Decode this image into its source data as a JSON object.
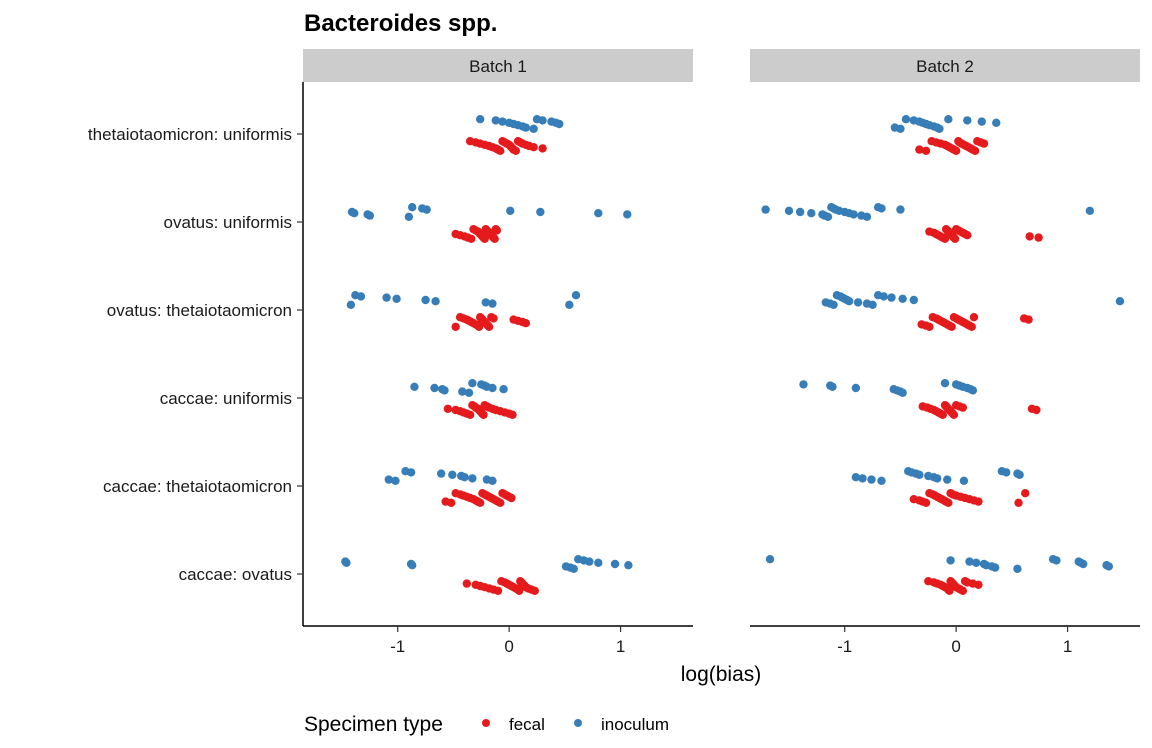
{
  "chart_data": {
    "type": "scatter",
    "title": "Bacteroides spp.",
    "xlabel": "log(bias)",
    "ylabel": "",
    "xlim": [
      -1.85,
      1.65
    ],
    "xticks": [
      "-1",
      "0",
      "1"
    ],
    "xtick_values": [
      -1,
      0,
      1
    ],
    "categories": [
      "thetaiotaomicron: uniformis",
      "ovatus: uniformis",
      "ovatus: thetaiotaomicron",
      "caccae: uniformis",
      "caccae: thetaiotaomicron",
      "caccae: ovatus"
    ],
    "legend": {
      "title": "Specimen type",
      "position": "bottom",
      "entries": [
        {
          "name": "fecal",
          "color": "#e41a1c"
        },
        {
          "name": "inoculum",
          "color": "#377eb8"
        }
      ]
    },
    "facets": [
      {
        "label": "Batch 1",
        "groups": [
          {
            "category": "thetaiotaomicron: uniformis",
            "inoculum": [
              -0.26,
              -0.12,
              -0.06,
              0.0,
              0.04,
              0.08,
              0.12,
              0.15,
              0.22,
              0.25,
              0.3,
              0.38,
              0.42,
              0.45
            ],
            "fecal": [
              -0.35,
              -0.3,
              -0.26,
              -0.22,
              -0.18,
              -0.15,
              -0.12,
              -0.1,
              -0.08,
              -0.06,
              -0.04,
              -0.02,
              0.0,
              0.01,
              0.02,
              0.03,
              0.04,
              0.06,
              0.08,
              0.1,
              0.12,
              0.15,
              0.18,
              0.22,
              0.3
            ]
          },
          {
            "category": "ovatus: uniformis",
            "inoculum": [
              -1.41,
              -1.39,
              -1.27,
              -1.25,
              -0.9,
              -0.87,
              -0.78,
              -0.74,
              0.01,
              0.28,
              0.8,
              1.06
            ],
            "fecal": [
              -0.48,
              -0.44,
              -0.4,
              -0.37,
              -0.34,
              -0.32,
              -0.3,
              -0.28,
              -0.27,
              -0.26,
              -0.25,
              -0.24,
              -0.23,
              -0.22,
              -0.21,
              -0.2,
              -0.19,
              -0.18,
              -0.17,
              -0.16,
              -0.15,
              -0.14,
              -0.13,
              -0.12,
              -0.11
            ]
          },
          {
            "category": "ovatus: thetaiotaomicron",
            "inoculum": [
              -1.42,
              -1.38,
              -1.33,
              -1.1,
              -1.01,
              -0.75,
              -0.66,
              -0.21,
              -0.15,
              0.54,
              0.6
            ],
            "fecal": [
              -0.48,
              -0.44,
              -0.41,
              -0.38,
              -0.36,
              -0.34,
              -0.32,
              -0.3,
              -0.28,
              -0.27,
              -0.26,
              -0.25,
              -0.24,
              -0.23,
              -0.22,
              -0.21,
              -0.2,
              -0.19,
              -0.18,
              -0.16,
              -0.14,
              0.04,
              0.08,
              0.12,
              0.15
            ]
          },
          {
            "category": "caccae: uniformis",
            "inoculum": [
              -0.85,
              -0.67,
              -0.6,
              -0.58,
              -0.42,
              -0.36,
              -0.33,
              -0.25,
              -0.22,
              -0.2,
              -0.15,
              -0.05
            ],
            "fecal": [
              -0.55,
              -0.48,
              -0.44,
              -0.41,
              -0.38,
              -0.35,
              -0.33,
              -0.31,
              -0.3,
              -0.28,
              -0.27,
              -0.26,
              -0.25,
              -0.24,
              -0.23,
              -0.22,
              -0.2,
              -0.18,
              -0.15,
              -0.12,
              -0.08,
              -0.04,
              0.0,
              0.03
            ]
          },
          {
            "category": "caccae: thetaiotaomicron",
            "inoculum": [
              -1.08,
              -1.02,
              -0.93,
              -0.88,
              -0.61,
              -0.51,
              -0.43,
              -0.4,
              -0.33,
              -0.2,
              -0.15
            ],
            "fecal": [
              -0.57,
              -0.52,
              -0.48,
              -0.44,
              -0.41,
              -0.38,
              -0.35,
              -0.32,
              -0.3,
              -0.28,
              -0.26,
              -0.24,
              -0.22,
              -0.2,
              -0.18,
              -0.16,
              -0.14,
              -0.12,
              -0.1,
              -0.08,
              -0.06,
              -0.04,
              -0.02,
              0.0,
              0.02
            ]
          },
          {
            "category": "caccae: ovatus",
            "inoculum": [
              -1.47,
              -1.46,
              -0.88,
              -0.87,
              0.51,
              0.55,
              0.58,
              0.62,
              0.67,
              0.72,
              0.8,
              0.95,
              1.07
            ],
            "fecal": [
              -0.38,
              -0.3,
              -0.26,
              -0.22,
              -0.18,
              -0.14,
              -0.1,
              -0.07,
              -0.04,
              -0.02,
              0.0,
              0.02,
              0.04,
              0.06,
              0.08,
              0.09,
              0.1,
              0.11,
              0.12,
              0.13,
              0.14,
              0.15,
              0.17,
              0.2,
              0.23
            ]
          }
        ]
      },
      {
        "label": "Batch 2",
        "groups": [
          {
            "category": "thetaiotaomicron: uniformis",
            "inoculum": [
              -0.55,
              -0.5,
              -0.45,
              -0.38,
              -0.33,
              -0.3,
              -0.27,
              -0.24,
              -0.2,
              -0.17,
              -0.15,
              -0.07,
              0.1,
              0.23,
              0.36
            ],
            "fecal": [
              -0.33,
              -0.27,
              -0.22,
              -0.18,
              -0.14,
              -0.1,
              -0.08,
              -0.06,
              -0.04,
              -0.02,
              0.0,
              0.02,
              0.03,
              0.05,
              0.07,
              0.09,
              0.11,
              0.13,
              0.15,
              0.17,
              0.19,
              0.22,
              0.25
            ]
          },
          {
            "category": "ovatus: uniformis",
            "inoculum": [
              -1.71,
              -1.5,
              -1.4,
              -1.3,
              -1.2,
              -1.18,
              -1.15,
              -1.12,
              -1.1,
              -1.08,
              -1.05,
              -1.0,
              -0.96,
              -0.92,
              -0.85,
              -0.8,
              -0.7,
              -0.67,
              -0.5,
              1.2
            ],
            "fecal": [
              -0.24,
              -0.2,
              -0.18,
              -0.16,
              -0.14,
              -0.12,
              -0.1,
              -0.09,
              -0.08,
              -0.07,
              -0.06,
              -0.05,
              -0.04,
              -0.03,
              -0.02,
              -0.01,
              0.0,
              0.02,
              0.04,
              0.06,
              0.08,
              0.1,
              0.66,
              0.74
            ]
          },
          {
            "category": "ovatus: thetaiotaomicron",
            "inoculum": [
              -1.17,
              -1.13,
              -1.1,
              -1.07,
              -1.04,
              -1.02,
              -1.0,
              -0.98,
              -0.96,
              -0.88,
              -0.8,
              -0.75,
              -0.7,
              -0.65,
              -0.58,
              -0.48,
              -0.38,
              1.47
            ],
            "fecal": [
              -0.31,
              -0.27,
              -0.24,
              -0.21,
              -0.18,
              -0.16,
              -0.14,
              -0.12,
              -0.1,
              -0.08,
              -0.06,
              -0.04,
              -0.02,
              0.0,
              0.02,
              0.04,
              0.06,
              0.08,
              0.1,
              0.12,
              0.14,
              0.16,
              0.61,
              0.65
            ]
          },
          {
            "category": "caccae: uniformis",
            "inoculum": [
              -1.37,
              -1.13,
              -1.11,
              -0.9,
              -0.56,
              -0.53,
              -0.5,
              -0.48,
              -0.1,
              0.0,
              0.03,
              0.06,
              0.1,
              0.13,
              0.15
            ],
            "fecal": [
              -0.3,
              -0.26,
              -0.23,
              -0.2,
              -0.18,
              -0.16,
              -0.14,
              -0.12,
              -0.1,
              -0.09,
              -0.08,
              -0.07,
              -0.06,
              -0.05,
              -0.04,
              -0.03,
              -0.02,
              0.0,
              0.03,
              0.06,
              0.68,
              0.72
            ]
          },
          {
            "category": "caccae: thetaiotaomicron",
            "inoculum": [
              -0.9,
              -0.84,
              -0.76,
              -0.67,
              -0.43,
              -0.4,
              -0.36,
              -0.33,
              -0.25,
              -0.2,
              -0.17,
              -0.08,
              0.07,
              0.41,
              0.45,
              0.55,
              0.57
            ],
            "fecal": [
              -0.38,
              -0.33,
              -0.3,
              -0.27,
              -0.24,
              -0.21,
              -0.19,
              -0.17,
              -0.15,
              -0.13,
              -0.11,
              -0.09,
              -0.07,
              -0.05,
              -0.03,
              0.0,
              0.04,
              0.08,
              0.12,
              0.16,
              0.2,
              0.56,
              0.62
            ]
          },
          {
            "category": "caccae: ovatus",
            "inoculum": [
              -1.67,
              -0.05,
              0.12,
              0.18,
              0.25,
              0.27,
              0.32,
              0.35,
              0.55,
              0.87,
              0.9,
              1.1,
              1.12,
              1.14,
              1.35,
              1.37
            ],
            "fecal": [
              -0.25,
              -0.2,
              -0.17,
              -0.14,
              -0.12,
              -0.1,
              -0.08,
              -0.07,
              -0.06,
              -0.05,
              -0.04,
              -0.03,
              -0.02,
              -0.01,
              0.0,
              0.02,
              0.04,
              0.06,
              0.08,
              0.1,
              0.15,
              0.2
            ]
          }
        ]
      }
    ]
  }
}
